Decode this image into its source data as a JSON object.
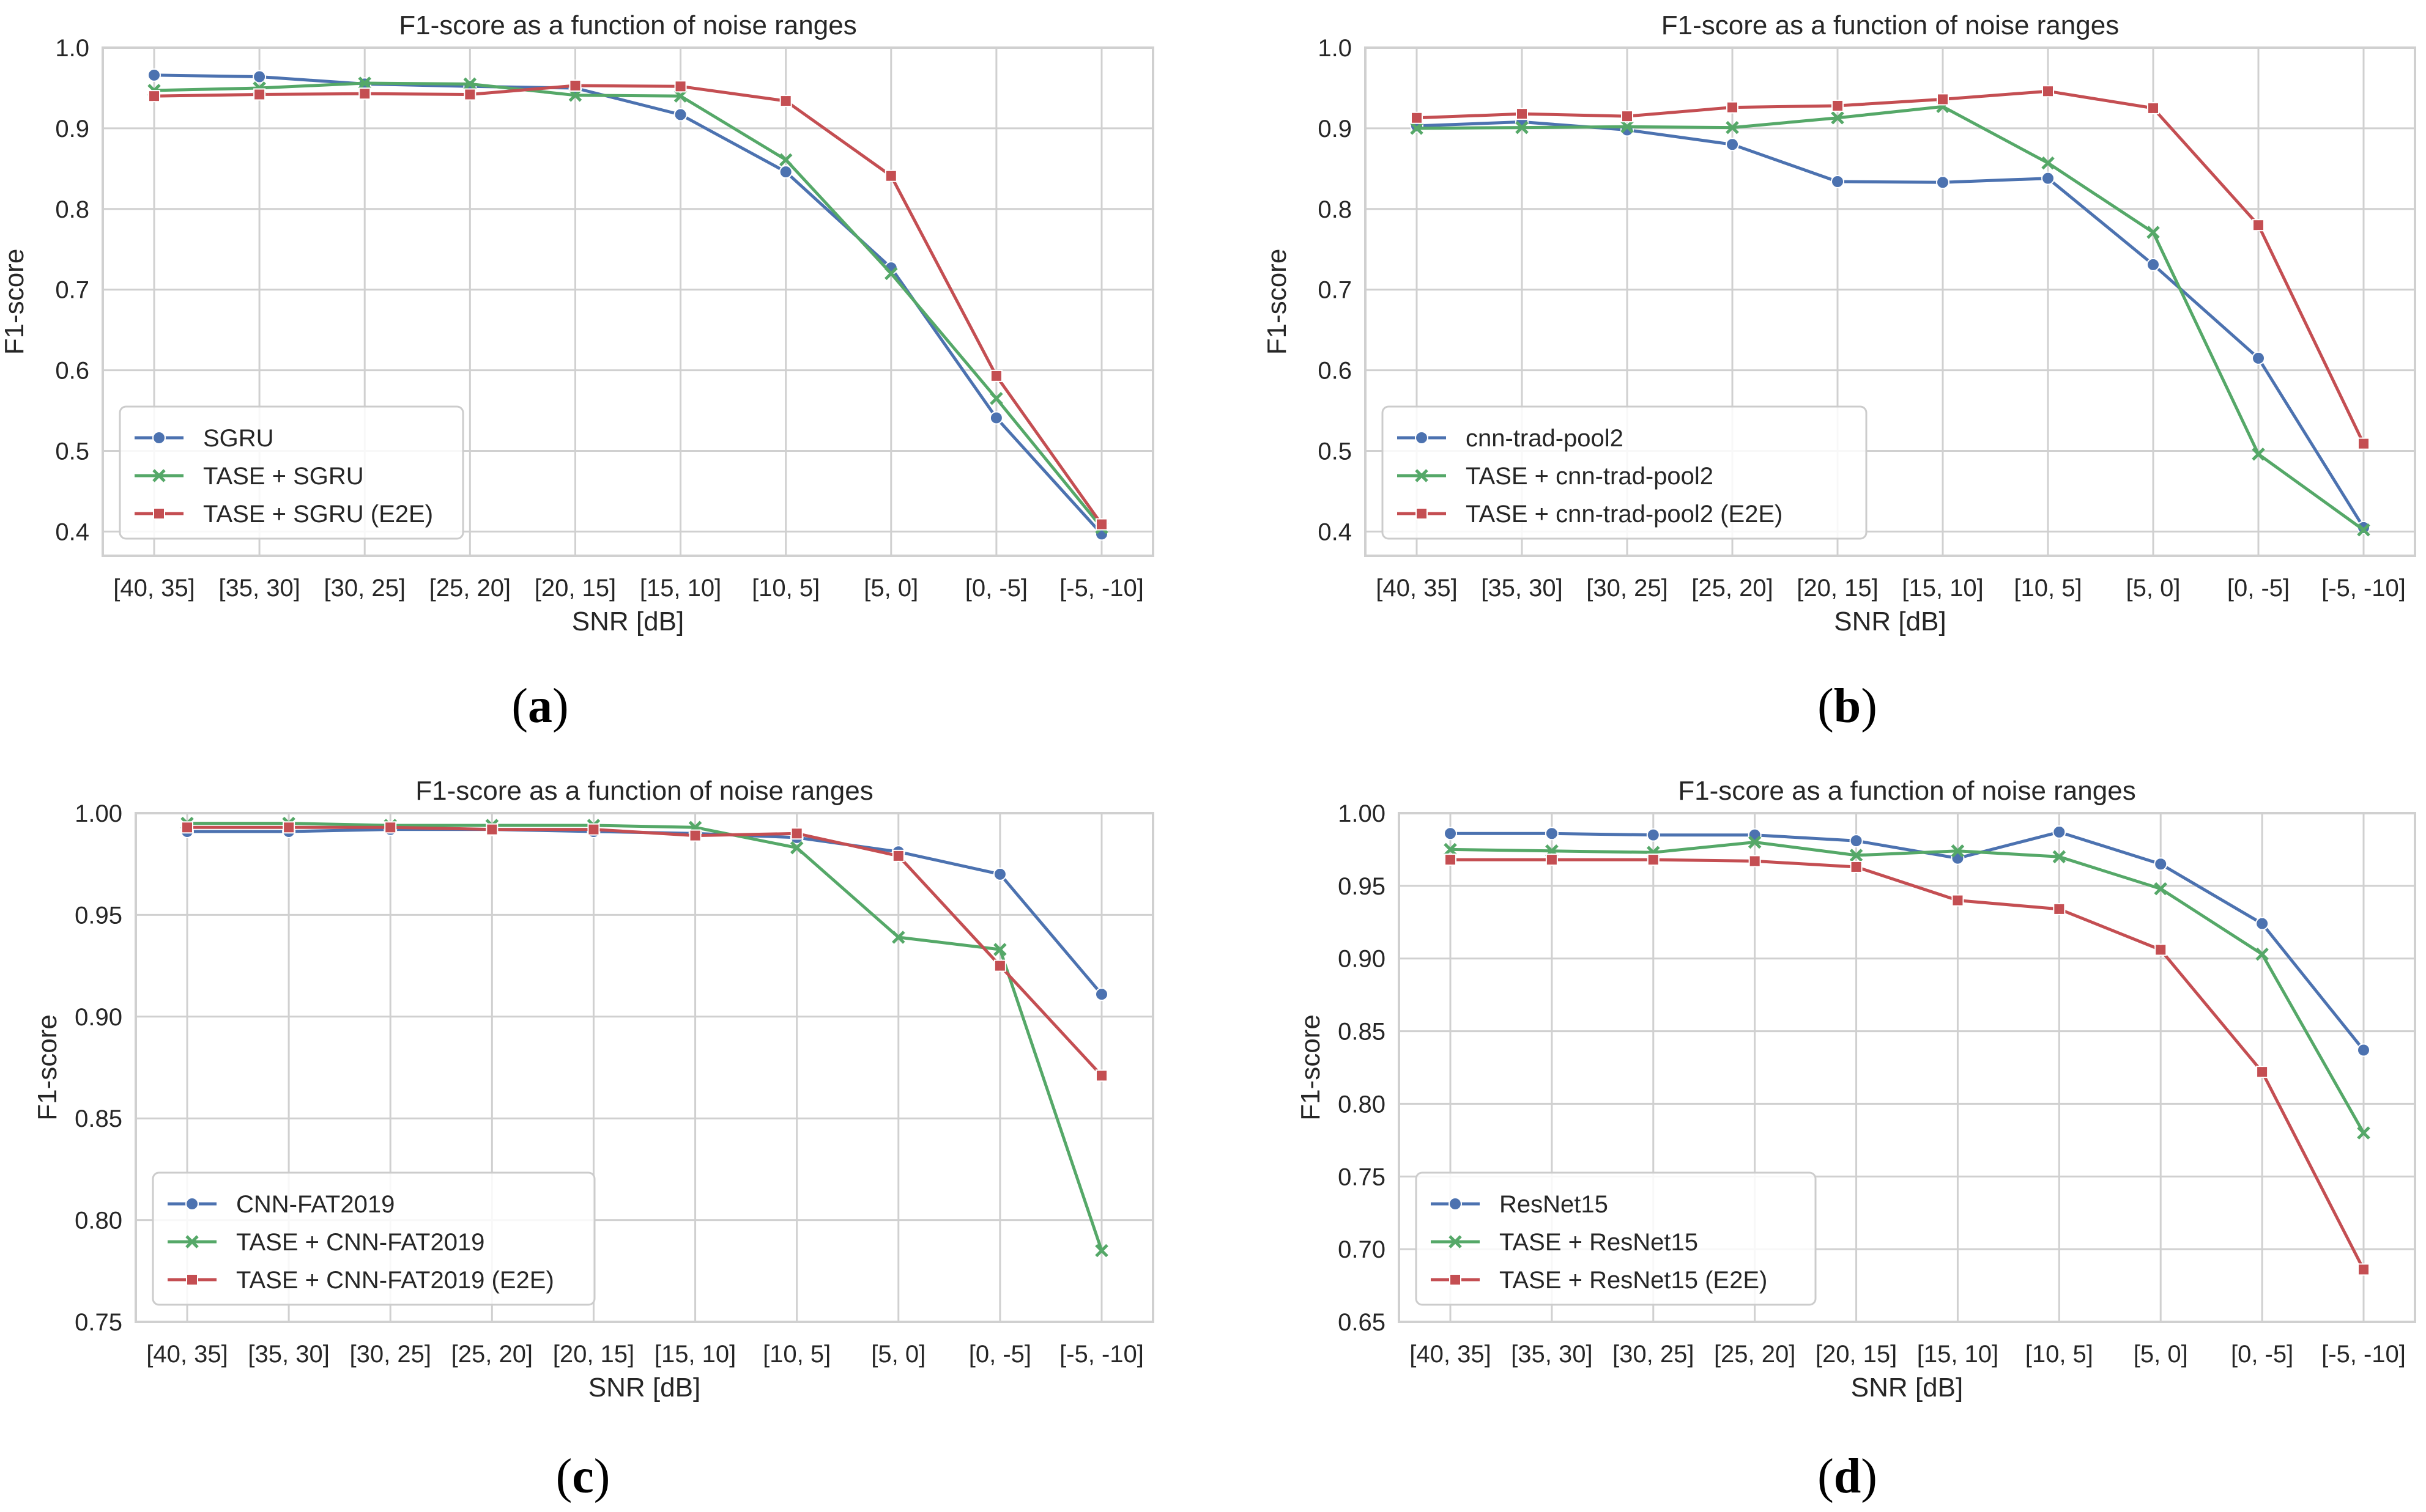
{
  "figure": {
    "colors": {
      "series1": "#4c72b0",
      "series2": "#55a868",
      "series3": "#c44e52",
      "grid": "#d0d0d0",
      "text": "#262626"
    },
    "categories": [
      "[40, 35]",
      "[35, 30]",
      "[30, 25]",
      "[25, 20]",
      "[20, 15]",
      "[15, 10]",
      "[10, 5]",
      "[5, 0]",
      "[0, -5]",
      "[-5, -10]"
    ]
  },
  "chart_data": [
    {
      "type": "line",
      "panel": "a",
      "caption_open": "(",
      "caption_letter": "a",
      "caption_close": ")",
      "title": "F1-score as a function of noise ranges",
      "xlabel": "SNR [dB]",
      "ylabel": "F1-score",
      "ylim": [
        0.37,
        1.0
      ],
      "yticks": [
        0.4,
        0.5,
        0.6,
        0.7,
        0.8,
        0.9,
        1.0
      ],
      "ytick_labels": [
        "0.4",
        "0.5",
        "0.6",
        "0.7",
        "0.8",
        "0.9",
        "1.0"
      ],
      "legend_position": "lower-left",
      "series": [
        {
          "name": "SGRU",
          "marker": "circle",
          "values": [
            0.966,
            0.964,
            0.955,
            0.952,
            0.95,
            0.917,
            0.846,
            0.727,
            0.541,
            0.397
          ]
        },
        {
          "name": "TASE + SGRU",
          "marker": "x",
          "values": [
            0.947,
            0.95,
            0.956,
            0.955,
            0.941,
            0.94,
            0.861,
            0.72,
            0.565,
            0.405
          ]
        },
        {
          "name": "TASE + SGRU (E2E)",
          "marker": "square",
          "values": [
            0.94,
            0.942,
            0.943,
            0.942,
            0.953,
            0.952,
            0.934,
            0.841,
            0.593,
            0.409
          ]
        }
      ]
    },
    {
      "type": "line",
      "panel": "b",
      "caption_open": "(",
      "caption_letter": "b",
      "caption_close": ")",
      "title": "F1-score as a function of noise ranges",
      "xlabel": "SNR [dB]",
      "ylabel": "F1-score",
      "ylim": [
        0.37,
        1.0
      ],
      "yticks": [
        0.4,
        0.5,
        0.6,
        0.7,
        0.8,
        0.9,
        1.0
      ],
      "ytick_labels": [
        "0.4",
        "0.5",
        "0.6",
        "0.7",
        "0.8",
        "0.9",
        "1.0"
      ],
      "legend_position": "lower-left",
      "series": [
        {
          "name": "cnn-trad-pool2",
          "marker": "circle",
          "values": [
            0.903,
            0.908,
            0.898,
            0.88,
            0.834,
            0.833,
            0.838,
            0.731,
            0.615,
            0.405
          ]
        },
        {
          "name": "TASE + cnn-trad-pool2",
          "marker": "x",
          "values": [
            0.9,
            0.901,
            0.902,
            0.901,
            0.913,
            0.927,
            0.857,
            0.771,
            0.496,
            0.402
          ]
        },
        {
          "name": "TASE + cnn-trad-pool2 (E2E)",
          "marker": "square",
          "values": [
            0.913,
            0.918,
            0.915,
            0.926,
            0.928,
            0.936,
            0.946,
            0.925,
            0.78,
            0.509
          ]
        }
      ]
    },
    {
      "type": "line",
      "panel": "c",
      "caption_open": "(",
      "caption_letter": "c",
      "caption_close": ")",
      "title": "F1-score as a function of noise ranges",
      "xlabel": "SNR [dB]",
      "ylabel": "F1-score",
      "ylim": [
        0.75,
        1.0
      ],
      "yticks": [
        0.75,
        0.8,
        0.85,
        0.9,
        0.95,
        1.0
      ],
      "ytick_labels": [
        "0.75",
        "0.80",
        "0.85",
        "0.90",
        "0.95",
        "1.00"
      ],
      "legend_position": "lower-left",
      "series": [
        {
          "name": "CNN-FAT2019",
          "marker": "circle",
          "values": [
            0.991,
            0.991,
            0.992,
            0.992,
            0.991,
            0.99,
            0.988,
            0.981,
            0.97,
            0.911
          ]
        },
        {
          "name": "TASE + CNN-FAT2019",
          "marker": "x",
          "values": [
            0.995,
            0.995,
            0.994,
            0.994,
            0.994,
            0.993,
            0.983,
            0.939,
            0.933,
            0.785
          ]
        },
        {
          "name": "TASE + CNN-FAT2019 (E2E)",
          "marker": "square",
          "values": [
            0.993,
            0.993,
            0.993,
            0.992,
            0.992,
            0.989,
            0.99,
            0.979,
            0.925,
            0.871
          ]
        }
      ]
    },
    {
      "type": "line",
      "panel": "d",
      "caption_open": "(",
      "caption_letter": "d",
      "caption_close": ")",
      "title": "F1-score as a function of noise ranges",
      "xlabel": "SNR [dB]",
      "ylabel": "F1-score",
      "ylim": [
        0.65,
        1.0
      ],
      "yticks": [
        0.65,
        0.7,
        0.75,
        0.8,
        0.85,
        0.9,
        0.95,
        1.0
      ],
      "ytick_labels": [
        "0.65",
        "0.70",
        "0.75",
        "0.80",
        "0.85",
        "0.90",
        "0.95",
        "1.00"
      ],
      "legend_position": "lower-left",
      "series": [
        {
          "name": "ResNet15",
          "marker": "circle",
          "values": [
            0.986,
            0.986,
            0.985,
            0.985,
            0.981,
            0.969,
            0.987,
            0.965,
            0.924,
            0.837
          ]
        },
        {
          "name": "TASE + ResNet15",
          "marker": "x",
          "values": [
            0.975,
            0.974,
            0.973,
            0.98,
            0.971,
            0.974,
            0.97,
            0.948,
            0.903,
            0.78
          ]
        },
        {
          "name": "TASE + ResNet15 (E2E)",
          "marker": "square",
          "values": [
            0.968,
            0.968,
            0.968,
            0.967,
            0.963,
            0.94,
            0.934,
            0.906,
            0.822,
            0.686
          ]
        }
      ]
    }
  ]
}
